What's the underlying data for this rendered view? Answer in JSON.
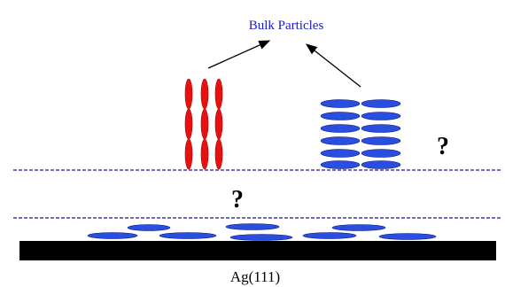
{
  "labels": {
    "title": "Bulk Particles",
    "question_top": "?",
    "question_mid": "?",
    "substrate": "Ag(111)"
  }
}
